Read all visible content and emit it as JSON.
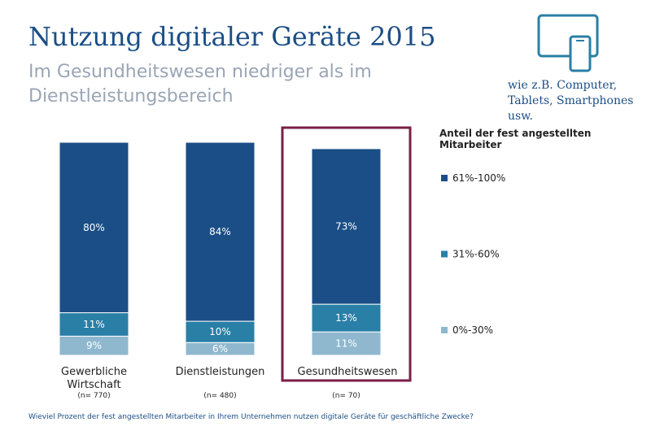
{
  "chart_data": {
    "type": "stacked_bar",
    "title": "Nutzung digitaler Geräte 2015",
    "subtitle": [
      "Im Gesundheitswesen niedriger als im",
      "Dienstleistungsbereich"
    ],
    "note": "wie z.B. Computer, Tablets, Smartphones usw.",
    "legend_title": "Anteil der fest angestellten Mitarbeiter",
    "categories": [
      "Gewerbliche Wirtschaft",
      "Dienstleistungen",
      "Gesundheitswesen"
    ],
    "sample_sizes": [
      "(n= 770)",
      "(n= 480)",
      "(n= 70)"
    ],
    "series": [
      {
        "name": "0%-30%",
        "color": "#8fb8cf",
        "values": [
          9,
          6,
          11
        ],
        "value_labels": [
          "9%",
          "6%",
          "11%"
        ]
      },
      {
        "name": "31%-60%",
        "color": "#2a7fa6",
        "values": [
          11,
          10,
          13
        ],
        "value_labels": [
          "11%",
          "10%",
          "13%"
        ]
      },
      {
        "name": "61%-100%",
        "color": "#1b4e86",
        "values": [
          80,
          84,
          73
        ],
        "value_labels": [
          "80%",
          "84%",
          "73%"
        ]
      }
    ],
    "ylim": [
      0,
      100
    ],
    "footnote": "Wieviel Prozent der fest angestellten Mitarbeiter in Ihrem Unternehmen nutzen digitale Geräte für geschäftliche Zwecke?"
  }
}
